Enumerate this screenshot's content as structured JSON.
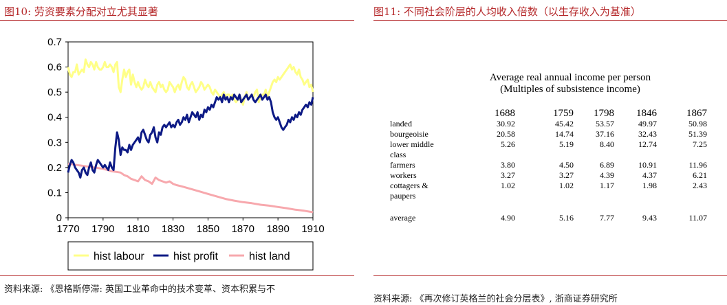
{
  "left_panel": {
    "figure_title": "图10:  劳资要素分配对立尤其显著",
    "source_note": "资料来源: 《恩格斯停滞: 英国工业革命中的技术变革、资本积累与不"
  },
  "right_panel": {
    "figure_title": "图11:  不同社会阶层的人均收入倍数（以生存收入为基准）",
    "source_note": "资料来源: 《再次修订英格兰的社会分层表》, 浙商证券研究所"
  },
  "colors": {
    "accent": "#b5282a",
    "labour": "#ffff88",
    "profit": "#0d1a85",
    "land": "#f7a8ad"
  },
  "chart_data": [
    {
      "type": "line",
      "title": "",
      "xlabel": "",
      "ylabel": "",
      "xlim": [
        1770,
        1910
      ],
      "ylim": [
        0,
        0.7
      ],
      "x_ticks": [
        "1770",
        "1790",
        "1810",
        "1830",
        "1850",
        "1870",
        "1890",
        "1910"
      ],
      "y_ticks": [
        "0",
        "0.1",
        "0.2",
        "0.3",
        "0.4",
        "0.5",
        "0.6",
        "0.7"
      ],
      "grid": false,
      "legend_position": "bottom",
      "series": [
        {
          "name": "hist labour",
          "color": "#ffff88",
          "x": [
            1770,
            1771,
            1772,
            1773,
            1774,
            1775,
            1776,
            1777,
            1778,
            1779,
            1780,
            1781,
            1782,
            1783,
            1784,
            1785,
            1786,
            1787,
            1788,
            1789,
            1790,
            1791,
            1792,
            1793,
            1794,
            1795,
            1796,
            1797,
            1798,
            1799,
            1800,
            1801,
            1802,
            1803,
            1804,
            1805,
            1806,
            1807,
            1808,
            1809,
            1810,
            1811,
            1812,
            1813,
            1814,
            1815,
            1816,
            1817,
            1818,
            1819,
            1820,
            1821,
            1822,
            1823,
            1824,
            1825,
            1826,
            1827,
            1828,
            1829,
            1830,
            1831,
            1832,
            1833,
            1834,
            1835,
            1836,
            1837,
            1838,
            1839,
            1840,
            1841,
            1842,
            1843,
            1844,
            1845,
            1846,
            1847,
            1848,
            1849,
            1850,
            1851,
            1852,
            1853,
            1854,
            1855,
            1856,
            1857,
            1858,
            1859,
            1860,
            1861,
            1862,
            1863,
            1864,
            1865,
            1866,
            1867,
            1868,
            1869,
            1870,
            1871,
            1872,
            1873,
            1874,
            1875,
            1876,
            1877,
            1878,
            1879,
            1880,
            1881,
            1882,
            1883,
            1884,
            1885,
            1886,
            1887,
            1888,
            1889,
            1890,
            1891,
            1892,
            1893,
            1894,
            1895,
            1896,
            1897,
            1898,
            1899,
            1900,
            1901,
            1902,
            1903,
            1904,
            1905,
            1906,
            1907,
            1908,
            1909,
            1910
          ],
          "y": [
            0.6,
            0.57,
            0.56,
            0.58,
            0.58,
            0.61,
            0.57,
            0.58,
            0.59,
            0.58,
            0.63,
            0.61,
            0.6,
            0.62,
            0.61,
            0.59,
            0.62,
            0.6,
            0.59,
            0.59,
            0.6,
            0.62,
            0.6,
            0.6,
            0.61,
            0.6,
            0.58,
            0.61,
            0.62,
            0.52,
            0.5,
            0.55,
            0.59,
            0.56,
            0.58,
            0.59,
            0.53,
            0.57,
            0.54,
            0.52,
            0.54,
            0.52,
            0.51,
            0.52,
            0.55,
            0.53,
            0.52,
            0.54,
            0.52,
            0.51,
            0.5,
            0.53,
            0.54,
            0.52,
            0.53,
            0.51,
            0.5,
            0.51,
            0.54,
            0.53,
            0.52,
            0.5,
            0.52,
            0.53,
            0.51,
            0.54,
            0.56,
            0.55,
            0.52,
            0.51,
            0.53,
            0.54,
            0.52,
            0.5,
            0.51,
            0.52,
            0.54,
            0.53,
            0.51,
            0.52,
            0.53,
            0.52,
            0.5,
            0.49,
            0.51,
            0.5,
            0.49,
            0.48,
            0.49,
            0.5,
            0.48,
            0.49,
            0.49,
            0.48,
            0.49,
            0.47,
            0.46,
            0.47,
            0.49,
            0.47,
            0.45,
            0.48,
            0.5,
            0.47,
            0.48,
            0.49,
            0.48,
            0.5,
            0.51,
            0.46,
            0.48,
            0.49,
            0.49,
            0.51,
            0.48,
            0.5,
            0.52,
            0.54,
            0.55,
            0.54,
            0.56,
            0.55,
            0.56,
            0.57,
            0.58,
            0.59,
            0.6,
            0.61,
            0.59,
            0.6,
            0.58,
            0.57,
            0.59,
            0.56,
            0.55,
            0.53,
            0.54,
            0.55,
            0.52,
            0.53,
            0.5
          ]
        },
        {
          "name": "hist profit",
          "color": "#0d1a85",
          "x": [
            1770,
            1771,
            1772,
            1773,
            1774,
            1775,
            1776,
            1777,
            1778,
            1779,
            1780,
            1781,
            1782,
            1783,
            1784,
            1785,
            1786,
            1787,
            1788,
            1789,
            1790,
            1791,
            1792,
            1793,
            1794,
            1795,
            1796,
            1797,
            1798,
            1799,
            1800,
            1801,
            1802,
            1803,
            1804,
            1805,
            1806,
            1807,
            1808,
            1809,
            1810,
            1811,
            1812,
            1813,
            1814,
            1815,
            1816,
            1817,
            1818,
            1819,
            1820,
            1821,
            1822,
            1823,
            1824,
            1825,
            1826,
            1827,
            1828,
            1829,
            1830,
            1831,
            1832,
            1833,
            1834,
            1835,
            1836,
            1837,
            1838,
            1839,
            1840,
            1841,
            1842,
            1843,
            1844,
            1845,
            1846,
            1847,
            1848,
            1849,
            1850,
            1851,
            1852,
            1853,
            1854,
            1855,
            1856,
            1857,
            1858,
            1859,
            1860,
            1861,
            1862,
            1863,
            1864,
            1865,
            1866,
            1867,
            1868,
            1869,
            1870,
            1871,
            1872,
            1873,
            1874,
            1875,
            1876,
            1877,
            1878,
            1879,
            1880,
            1881,
            1882,
            1883,
            1884,
            1885,
            1886,
            1887,
            1888,
            1889,
            1890,
            1891,
            1892,
            1893,
            1894,
            1895,
            1896,
            1897,
            1898,
            1899,
            1900,
            1901,
            1902,
            1903,
            1904,
            1905,
            1906,
            1907,
            1908,
            1909,
            1910
          ],
          "y": [
            0.18,
            0.21,
            0.23,
            0.22,
            0.2,
            0.19,
            0.18,
            0.16,
            0.19,
            0.2,
            0.18,
            0.17,
            0.2,
            0.22,
            0.19,
            0.18,
            0.21,
            0.23,
            0.22,
            0.21,
            0.2,
            0.21,
            0.2,
            0.19,
            0.22,
            0.2,
            0.19,
            0.28,
            0.34,
            0.31,
            0.25,
            0.28,
            0.27,
            0.27,
            0.26,
            0.29,
            0.27,
            0.29,
            0.3,
            0.31,
            0.32,
            0.3,
            0.34,
            0.35,
            0.33,
            0.31,
            0.3,
            0.33,
            0.34,
            0.36,
            0.32,
            0.3,
            0.34,
            0.33,
            0.36,
            0.37,
            0.36,
            0.37,
            0.38,
            0.36,
            0.37,
            0.36,
            0.38,
            0.39,
            0.37,
            0.38,
            0.4,
            0.39,
            0.41,
            0.38,
            0.4,
            0.42,
            0.41,
            0.4,
            0.42,
            0.39,
            0.41,
            0.4,
            0.43,
            0.42,
            0.44,
            0.43,
            0.45,
            0.44,
            0.46,
            0.48,
            0.47,
            0.48,
            0.46,
            0.49,
            0.47,
            0.48,
            0.46,
            0.48,
            0.47,
            0.49,
            0.48,
            0.47,
            0.49,
            0.46,
            0.47,
            0.48,
            0.49,
            0.47,
            0.48,
            0.49,
            0.47,
            0.46,
            0.47,
            0.48,
            0.49,
            0.47,
            0.48,
            0.49,
            0.47,
            0.48,
            0.46,
            0.42,
            0.4,
            0.39,
            0.4,
            0.38,
            0.36,
            0.35,
            0.36,
            0.37,
            0.39,
            0.38,
            0.4,
            0.39,
            0.41,
            0.4,
            0.42,
            0.41,
            0.43,
            0.44,
            0.45,
            0.44,
            0.46,
            0.45,
            0.48
          ]
        },
        {
          "name": "hist land",
          "color": "#f7a8ad",
          "x": [
            1770,
            1775,
            1780,
            1785,
            1790,
            1795,
            1800,
            1802,
            1804,
            1806,
            1808,
            1810,
            1812,
            1814,
            1816,
            1818,
            1820,
            1822,
            1824,
            1826,
            1828,
            1830,
            1832,
            1835,
            1840,
            1845,
            1850,
            1855,
            1860,
            1865,
            1870,
            1875,
            1880,
            1885,
            1890,
            1895,
            1900,
            1905,
            1910
          ],
          "y": [
            0.215,
            0.21,
            0.205,
            0.2,
            0.195,
            0.185,
            0.18,
            0.17,
            0.165,
            0.155,
            0.15,
            0.145,
            0.165,
            0.15,
            0.145,
            0.135,
            0.16,
            0.15,
            0.145,
            0.14,
            0.145,
            0.135,
            0.13,
            0.125,
            0.115,
            0.105,
            0.095,
            0.085,
            0.075,
            0.068,
            0.062,
            0.058,
            0.052,
            0.048,
            0.043,
            0.038,
            0.032,
            0.028,
            0.022
          ]
        }
      ]
    },
    {
      "type": "table",
      "title": "Average real annual income per person",
      "subtitle": "(Multiples of subsistence income)",
      "columns": [
        "1688",
        "1759",
        "1798",
        "1846",
        "1867"
      ],
      "rows": [
        {
          "label": [
            "landed"
          ],
          "values": [
            "30.92",
            "45.42",
            "53.57",
            "49.97",
            "50.98"
          ]
        },
        {
          "label": [
            "bourgeoisie"
          ],
          "values": [
            "20.58",
            "14.74",
            "37.16",
            "32.43",
            "51.39"
          ]
        },
        {
          "label": [
            "lower middle",
            "class"
          ],
          "values": [
            "5.26",
            "5.19",
            "8.40",
            "12.74",
            "7.25"
          ]
        },
        {
          "label": [
            "farmers"
          ],
          "values": [
            "3.80",
            "4.50",
            "6.89",
            "10.91",
            "11.96"
          ]
        },
        {
          "label": [
            "workers"
          ],
          "values": [
            "3.27",
            "3.27",
            "4.39",
            "4.37",
            "6.21"
          ]
        },
        {
          "label": [
            "cottagers &",
            "paupers"
          ],
          "values": [
            "1.02",
            "1.02",
            "1.17",
            "1.98",
            "2.43"
          ]
        },
        {
          "label": [
            "average"
          ],
          "values": [
            "4.90",
            "5.16",
            "7.77",
            "9.43",
            "11.07"
          ]
        }
      ]
    }
  ]
}
